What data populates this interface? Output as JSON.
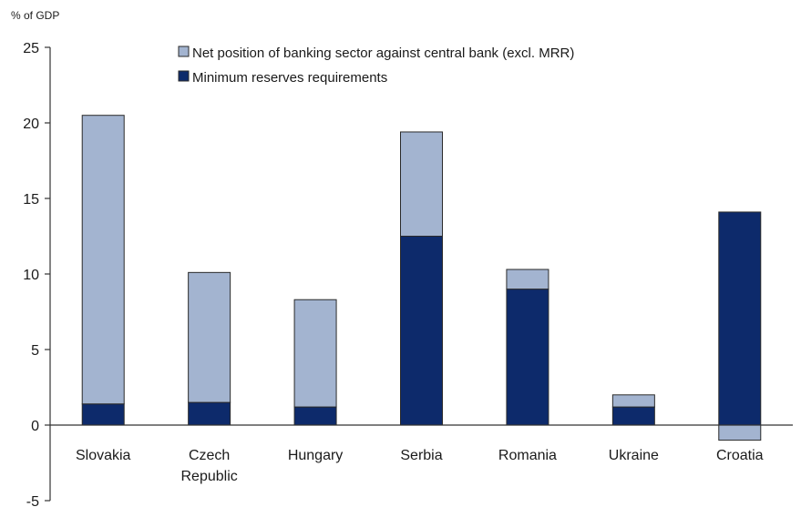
{
  "chart_data": {
    "type": "bar",
    "stacked": true,
    "ylabel": "% of GDP",
    "ylim": [
      -5,
      25
    ],
    "yticks": [
      "-5",
      "0",
      "5",
      "10",
      "15",
      "20",
      "25"
    ],
    "categories": [
      "Slovakia",
      "Czech\nRepublic",
      "Hungary",
      "Serbia",
      "Romania",
      "Ukraine",
      "Croatia"
    ],
    "series": [
      {
        "name": "Net position of banking sector against central bank (excl. MRR)",
        "color": "#a3b4d0",
        "values": [
          19.1,
          8.6,
          7.1,
          6.9,
          1.3,
          0.8,
          -1.0
        ]
      },
      {
        "name": "Minimum reserves requirements",
        "color": "#0d2a6b",
        "values": [
          1.4,
          1.5,
          1.2,
          12.5,
          9.0,
          1.2,
          14.1
        ]
      }
    ],
    "legend_position": "top-center",
    "grid": false
  }
}
